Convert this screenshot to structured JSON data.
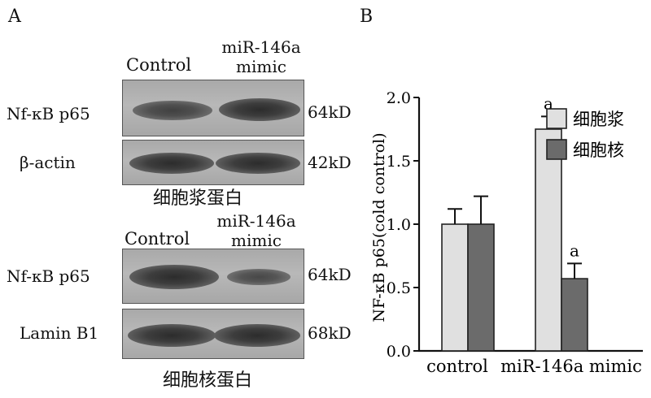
{
  "panel_a": {
    "letter": "A",
    "top": {
      "col_control": "Control",
      "col_mimic_1": "miR-146a",
      "col_mimic_2": "mimic",
      "rows": [
        {
          "label": "Nf-κB p65",
          "kd": "64kD"
        },
        {
          "label": "β-actin",
          "kd": "42kD"
        }
      ],
      "caption": "细胞浆蛋白"
    },
    "bottom": {
      "col_control": "Control",
      "col_mimic_1": "miR-146a",
      "col_mimic_2": "mimic",
      "rows": [
        {
          "label": "Nf-κB p65",
          "kd": "64kD"
        },
        {
          "label": "Lamin B1",
          "kd": "68kD"
        }
      ],
      "caption": "细胞核蛋白"
    }
  },
  "panel_b": {
    "letter": "B"
  },
  "chart_data": {
    "type": "bar",
    "categories": [
      "control",
      "miR-146a mimic"
    ],
    "ylabel": "NF-κB p65(cold control)",
    "ylim": [
      0,
      2.0
    ],
    "yticks": [
      "0.0",
      "0.5",
      "1.0",
      "1.5",
      "2.0"
    ],
    "series": [
      {
        "name": "细胞浆",
        "values": [
          1.0,
          1.75
        ],
        "errors": [
          0.12,
          0.1
        ],
        "color": "#e0e0e0"
      },
      {
        "name": "细胞核",
        "values": [
          1.0,
          0.57
        ],
        "errors": [
          0.22,
          0.12
        ],
        "color": "#6b6b6b"
      }
    ],
    "annotations": [
      {
        "series": 0,
        "category": 1,
        "text": "a"
      },
      {
        "series": 1,
        "category": 1,
        "text": "a"
      }
    ],
    "legend_position": "top-right"
  }
}
